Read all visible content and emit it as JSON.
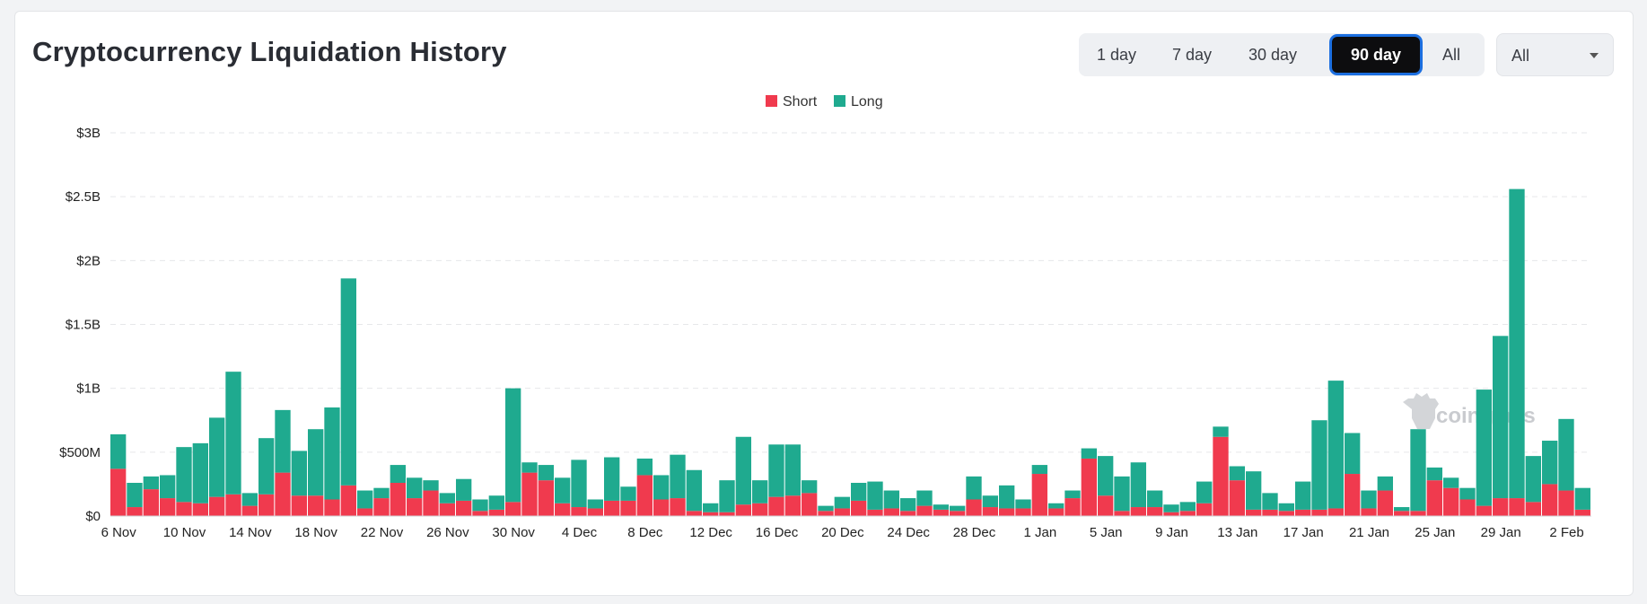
{
  "header": {
    "title": "Cryptocurrency Liquidation History"
  },
  "range_tabs": [
    {
      "label": "1 day",
      "active": false
    },
    {
      "label": "7 day",
      "active": false
    },
    {
      "label": "30 day",
      "active": false
    },
    {
      "label": "90 day",
      "active": true
    },
    {
      "label": "All",
      "active": false
    }
  ],
  "coin_select": {
    "value": "All"
  },
  "watermark": "coinglass",
  "colors": {
    "short": "#f03a4e",
    "long": "#1faa8f",
    "active_tab": "#0d0d0f",
    "focus_ring": "#1c6fe0"
  },
  "chart_data": {
    "type": "bar",
    "stacked": true,
    "legend_position": "top-center",
    "grid": true,
    "ylim": [
      0,
      3000
    ],
    "y_unit": "millions USD",
    "yticks": [
      "$0",
      "$500M",
      "$1B",
      "$1.5B",
      "$2B",
      "$2.5B",
      "$3B"
    ],
    "xticks": [
      "6 Nov",
      "10 Nov",
      "14 Nov",
      "18 Nov",
      "22 Nov",
      "26 Nov",
      "30 Nov",
      "4 Dec",
      "8 Dec",
      "12 Dec",
      "16 Dec",
      "20 Dec",
      "24 Dec",
      "28 Dec",
      "1 Jan",
      "5 Jan",
      "9 Jan",
      "13 Jan",
      "17 Jan",
      "21 Jan",
      "25 Jan",
      "29 Jan",
      "2 Feb"
    ],
    "x_start": "2024-11-06",
    "x_end": "2025-02-03",
    "series": [
      {
        "name": "Short",
        "color": "#f03a4e",
        "values": [
          370,
          70,
          210,
          140,
          110,
          100,
          150,
          170,
          80,
          170,
          340,
          160,
          160,
          130,
          240,
          60,
          140,
          260,
          140,
          200,
          100,
          120,
          40,
          50,
          110,
          340,
          280,
          100,
          70,
          60,
          120,
          120,
          320,
          130,
          140,
          40,
          30,
          30,
          90,
          100,
          150,
          160,
          180,
          40,
          60,
          120,
          50,
          60,
          40,
          80,
          50,
          40,
          130,
          70,
          60,
          60,
          330,
          60,
          140,
          450,
          160,
          40,
          70,
          70,
          30,
          40,
          100,
          620,
          280,
          50,
          50,
          40,
          50,
          50,
          60,
          330,
          60,
          200,
          40,
          40,
          280,
          220,
          130,
          80,
          140,
          140,
          110,
          250,
          200,
          50
        ]
      },
      {
        "name": "Long",
        "color": "#1faa8f",
        "values": [
          270,
          190,
          100,
          180,
          430,
          470,
          620,
          960,
          100,
          440,
          490,
          350,
          520,
          720,
          1620,
          140,
          80,
          140,
          160,
          80,
          80,
          170,
          90,
          110,
          890,
          80,
          120,
          200,
          370,
          70,
          340,
          110,
          130,
          190,
          340,
          320,
          70,
          250,
          530,
          180,
          410,
          400,
          100,
          40,
          90,
          140,
          220,
          140,
          100,
          120,
          40,
          40,
          180,
          90,
          180,
          70,
          70,
          40,
          60,
          80,
          310,
          270,
          350,
          130,
          60,
          70,
          170,
          80,
          110,
          300,
          130,
          60,
          220,
          700,
          1000,
          320,
          140,
          110,
          30,
          640,
          100,
          80,
          90,
          910,
          1270,
          2420,
          360,
          340,
          560,
          170
        ]
      }
    ]
  }
}
